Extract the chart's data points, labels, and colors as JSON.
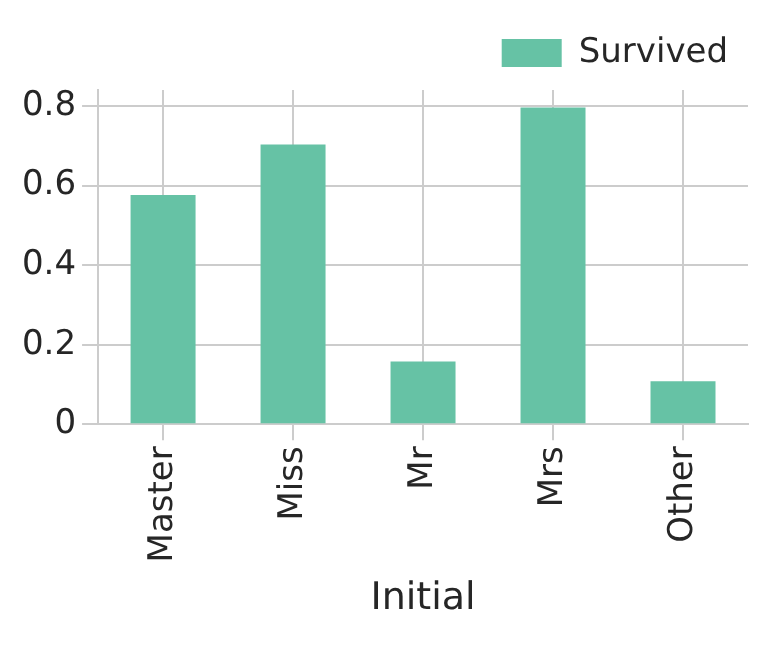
{
  "chart_data": {
    "type": "bar",
    "xlabel": "Initial",
    "categories": [
      "Master",
      "Miss",
      "Mr",
      "Mrs",
      "Other"
    ],
    "series": [
      {
        "name": "Survived",
        "color": "#66c2a5",
        "values": [
          0.576,
          0.703,
          0.158,
          0.796,
          0.108
        ]
      }
    ],
    "ylim": [
      0,
      0.84
    ],
    "yticks": [
      0,
      0.2,
      0.4,
      0.6,
      0.8
    ],
    "grid": true,
    "legend": "top right"
  }
}
